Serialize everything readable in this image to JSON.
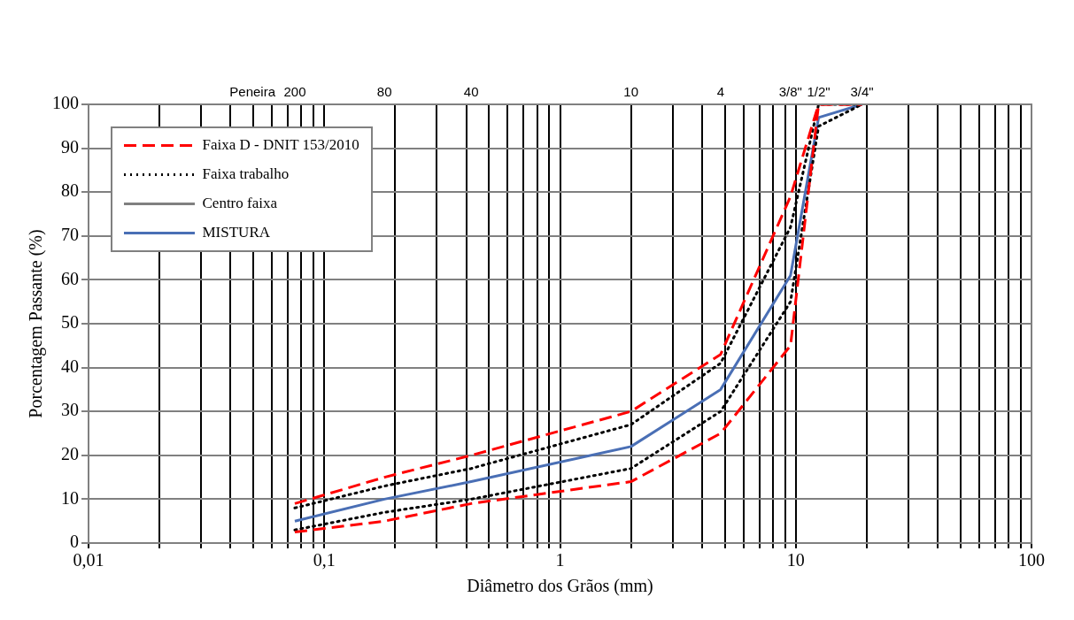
{
  "chart_data": {
    "type": "line",
    "xlabel": "Diâmetro dos Grãos (mm)",
    "ylabel": "Porcentagem Passante (%)",
    "x": [
      0.075,
      0.18,
      0.42,
      2.0,
      4.8,
      9.5,
      12.5,
      19.1
    ],
    "series": [
      {
        "name": "Faixa D - DNIT 153/2010",
        "color": "#ff0000",
        "line_style": "dashed",
        "values": [
          9,
          15,
          20,
          30,
          43,
          79,
          100,
          100
        ]
      },
      {
        "color": "#ff0000",
        "line_style": "dashed",
        "values": [
          2.5,
          5,
          9,
          14,
          25,
          45,
          100,
          100
        ]
      },
      {
        "name": "Faixa trabalho",
        "color": "#000000",
        "line_style": "dotted",
        "values": [
          8,
          13,
          17,
          27,
          41,
          72,
          100,
          100
        ]
      },
      {
        "color": "#000000",
        "line_style": "dotted",
        "values": [
          3,
          7,
          10,
          17,
          30,
          55,
          95,
          100
        ]
      },
      {
        "name": "Centro faixa",
        "color": "#808080",
        "line_style": "solid",
        "values": [
          null,
          null,
          null,
          null,
          null,
          null,
          null,
          null
        ]
      },
      {
        "name": "MISTURA",
        "color": "#4a6fb5",
        "line_style": "solid",
        "values": [
          5,
          10,
          14,
          22,
          35,
          61,
          97,
          100
        ]
      }
    ],
    "log": "x",
    "xlim": [
      0.01,
      100
    ],
    "xticks": [
      {
        "value": 0.01,
        "label": "0,01"
      },
      {
        "value": 0.02,
        "label": null
      },
      {
        "value": 0.03,
        "label": null
      },
      {
        "value": 0.04,
        "label": null
      },
      {
        "value": 0.05,
        "label": null
      },
      {
        "value": 0.06,
        "label": null
      },
      {
        "value": 0.07,
        "label": null
      },
      {
        "value": 0.08,
        "label": null
      },
      {
        "value": 0.09,
        "label": null
      },
      {
        "value": 0.1,
        "label": "0,1"
      },
      {
        "value": 0.2,
        "label": null
      },
      {
        "value": 0.3,
        "label": null
      },
      {
        "value": 0.4,
        "label": null
      },
      {
        "value": 0.5,
        "label": null
      },
      {
        "value": 0.6,
        "label": null
      },
      {
        "value": 0.7,
        "label": null
      },
      {
        "value": 0.8,
        "label": null
      },
      {
        "value": 0.9,
        "label": null
      },
      {
        "value": 1,
        "label": "1"
      },
      {
        "value": 2,
        "label": null
      },
      {
        "value": 3,
        "label": null
      },
      {
        "value": 4,
        "label": null
      },
      {
        "value": 5,
        "label": null
      },
      {
        "value": 6,
        "label": null
      },
      {
        "value": 7,
        "label": null
      },
      {
        "value": 8,
        "label": null
      },
      {
        "value": 9,
        "label": null
      },
      {
        "value": 10,
        "label": "10"
      },
      {
        "value": 20,
        "label": null
      },
      {
        "value": 30,
        "label": null
      },
      {
        "value": 40,
        "label": null
      },
      {
        "value": 50,
        "label": null
      },
      {
        "value": 60,
        "label": null
      },
      {
        "value": 70,
        "label": null
      },
      {
        "value": 80,
        "label": null
      },
      {
        "value": 90,
        "label": null
      },
      {
        "value": 100,
        "label": "100"
      }
    ],
    "annotations": [
      "Peneira",
      "200",
      "80",
      "40",
      "10",
      "4",
      "3/8\"",
      "1/2\"",
      "3/4\""
    ],
    "ylim": [
      0,
      100
    ],
    "yticks": [
      0,
      10,
      20,
      30,
      40,
      50,
      60,
      70,
      80,
      90,
      100
    ],
    "grid": true,
    "legend": "top left",
    "marker": "none"
  }
}
